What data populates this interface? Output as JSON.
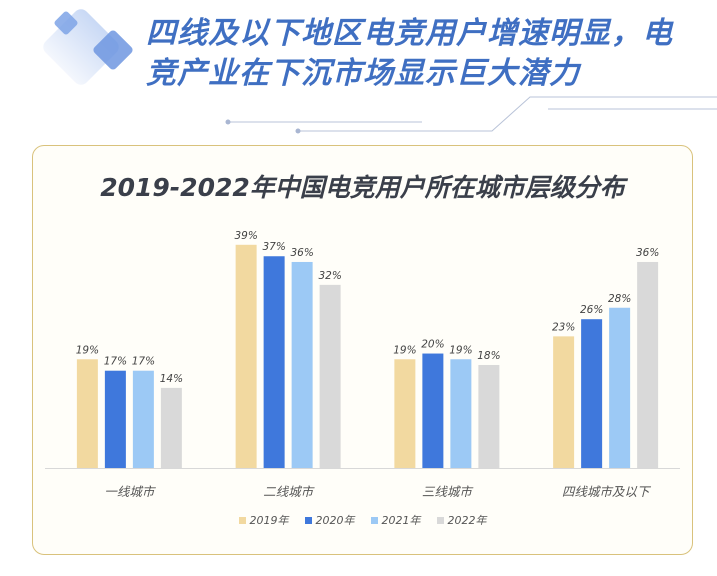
{
  "header": {
    "headline_line1": "四线及以下地区电竞用户增速明显，电",
    "headline_line2": "竞产业在下沉市场显示巨大潜力",
    "deco_icon": "diamond-squares-icon"
  },
  "chart_data": {
    "type": "bar",
    "title": "2019-2022年中国电竞用户所在城市层级分布",
    "xlabel": "",
    "ylabel": "",
    "ylim": [
      0,
      40
    ],
    "grid": false,
    "legend_position": "bottom-center",
    "categories": [
      "一线城市",
      "二线城市",
      "三线城市",
      "四线城市及以下"
    ],
    "series": [
      {
        "name": "2019年",
        "color": "#f2d9a0",
        "values": [
          19,
          39,
          19,
          23
        ],
        "labels": [
          "19%",
          "39%",
          "19%",
          "23%"
        ]
      },
      {
        "name": "2020年",
        "color": "#3f78dc",
        "values": [
          17,
          37,
          20,
          26
        ],
        "labels": [
          "17%",
          "37%",
          "20%",
          "26%"
        ]
      },
      {
        "name": "2021年",
        "color": "#9cc9f5",
        "values": [
          17,
          36,
          19,
          28
        ],
        "labels": [
          "17%",
          "36%",
          "19%",
          "28%"
        ]
      },
      {
        "name": "2022年",
        "color": "#d9d9d9",
        "values": [
          14,
          32,
          18,
          36
        ],
        "labels": [
          "14%",
          "32%",
          "18%",
          "36%"
        ]
      }
    ]
  }
}
